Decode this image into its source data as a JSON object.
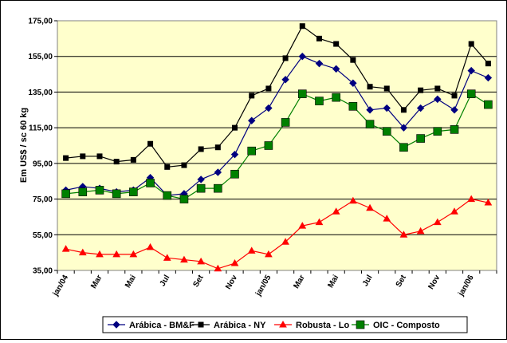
{
  "chart_data": {
    "type": "line",
    "title": "",
    "xlabel": "",
    "ylabel": "Em US$ / sc 60 kg",
    "ylim": [
      35,
      175
    ],
    "yticks": [
      "35,00",
      "55,00",
      "75,00",
      "95,00",
      "115,00",
      "135,00",
      "155,00",
      "175,00"
    ],
    "ytick_values": [
      35,
      55,
      75,
      95,
      115,
      135,
      155,
      175
    ],
    "x_count": 26,
    "xtick_labels": [
      {
        "index": 0,
        "label": "jan/04"
      },
      {
        "index": 2,
        "label": "Mar"
      },
      {
        "index": 4,
        "label": "Mai"
      },
      {
        "index": 6,
        "label": "Jul"
      },
      {
        "index": 8,
        "label": "Set"
      },
      {
        "index": 10,
        "label": "Nov"
      },
      {
        "index": 12,
        "label": "jan/05"
      },
      {
        "index": 14,
        "label": "Mar"
      },
      {
        "index": 16,
        "label": "Mai"
      },
      {
        "index": 18,
        "label": "Jul"
      },
      {
        "index": 20,
        "label": "Set"
      },
      {
        "index": 22,
        "label": "Nov"
      },
      {
        "index": 24,
        "label": "jan/06"
      }
    ],
    "grid": "horizontal",
    "plot_background": "#FFFFCC",
    "legend_position": "bottom",
    "series": [
      {
        "name": "Arábica - BM&F",
        "color": "#000080",
        "marker": "diamond",
        "values": [
          80,
          82,
          81,
          79,
          80,
          87,
          77,
          78,
          86,
          90,
          100,
          119,
          126,
          142,
          155,
          151,
          148,
          140,
          125,
          126,
          115,
          126,
          131,
          125,
          147,
          143
        ]
      },
      {
        "name": "Arábica - NY",
        "color": "#000000",
        "marker": "square",
        "values": [
          98,
          99,
          99,
          96,
          97,
          106,
          93,
          94,
          103,
          104,
          115,
          133,
          137,
          154,
          172,
          165,
          162,
          153,
          138,
          137,
          125,
          136,
          137,
          133,
          162,
          151
        ]
      },
      {
        "name": "Robusta - Lo",
        "color": "#FF0000",
        "marker": "triangle",
        "values": [
          47,
          45,
          44,
          44,
          44,
          48,
          42,
          41,
          40,
          36,
          39,
          46,
          44,
          51,
          60,
          62,
          68,
          74,
          70,
          64,
          55,
          57,
          62,
          68,
          75,
          73
        ]
      },
      {
        "name": "OIC - Composto",
        "color": "#008000",
        "marker": "square-large",
        "values": [
          78,
          79,
          80,
          78,
          79,
          84,
          77,
          75,
          81,
          81,
          89,
          102,
          105,
          118,
          134,
          130,
          132,
          127,
          117,
          113,
          104,
          109,
          113,
          114,
          134,
          128
        ]
      }
    ]
  }
}
